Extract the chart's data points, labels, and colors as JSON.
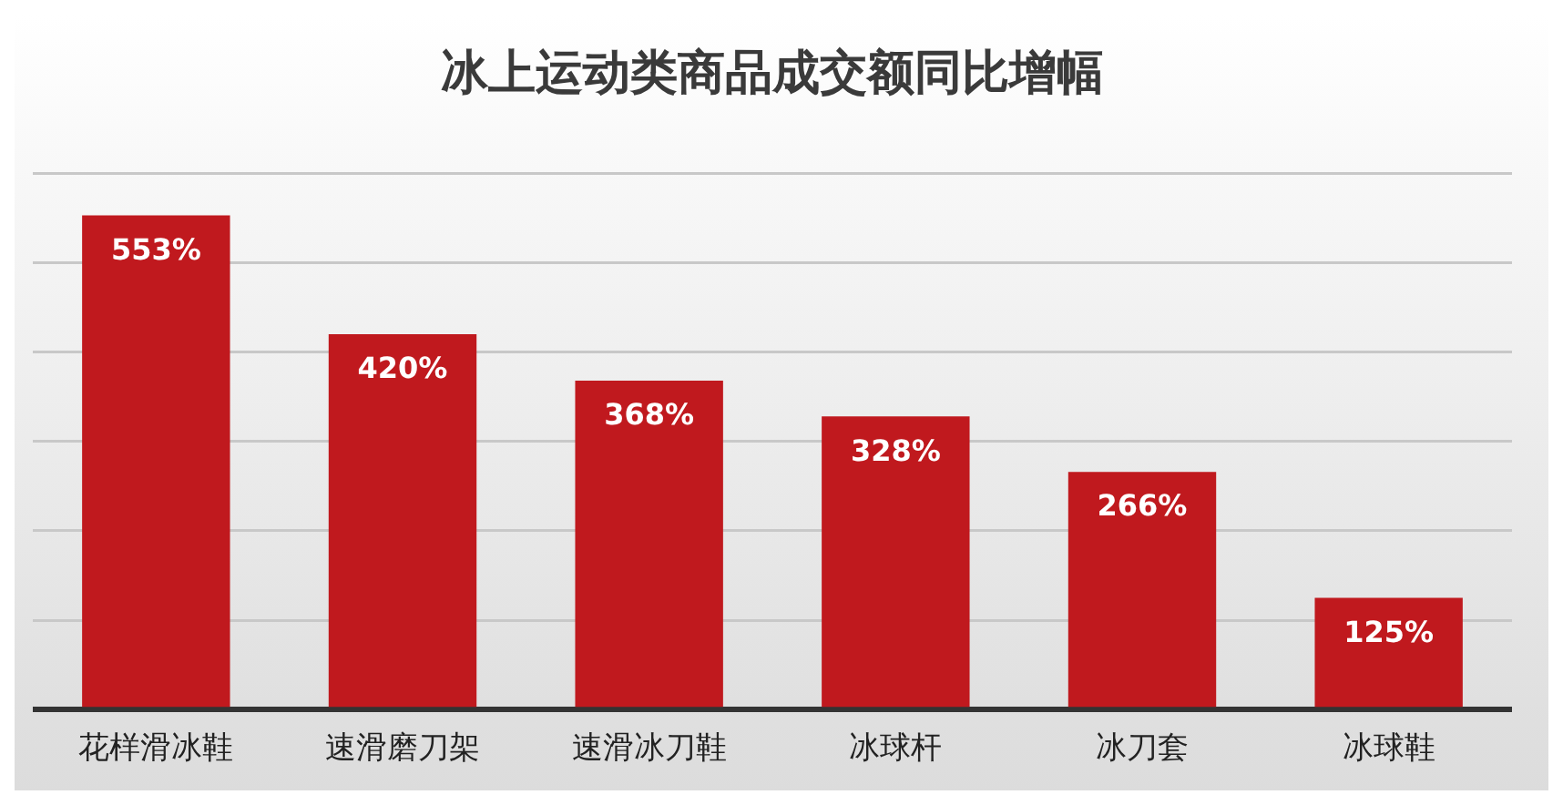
{
  "chart_data": {
    "type": "bar",
    "title": "冰上运动类商品成交额同比增幅",
    "categories": [
      "花样滑冰鞋",
      "速滑磨刀架",
      "速滑冰刀鞋",
      "冰球杆",
      "冰刀套",
      "冰球鞋"
    ],
    "values": [
      553,
      420,
      368,
      328,
      266,
      125
    ],
    "value_labels": [
      "553%",
      "420%",
      "368%",
      "328%",
      "266%",
      "125%"
    ],
    "color": "#c0191e",
    "ylim": [
      0,
      600
    ],
    "yticks": [
      {
        "value": 0,
        "label": null
      },
      {
        "value": 100,
        "label": null
      },
      {
        "value": 200,
        "label": null
      },
      {
        "value": 300,
        "label": null
      },
      {
        "value": 400,
        "label": null
      },
      {
        "value": 500,
        "label": null
      },
      {
        "value": 600,
        "label": null
      }
    ],
    "tick_labels": "x",
    "grid": "y",
    "legend": false
  }
}
